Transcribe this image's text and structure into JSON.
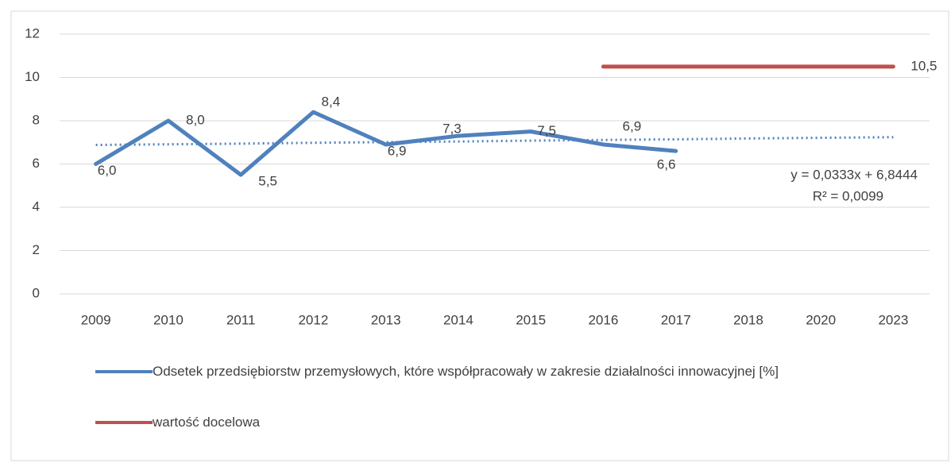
{
  "chart_data": {
    "type": "line",
    "categories": [
      "2009",
      "2010",
      "2011",
      "2012",
      "2013",
      "2014",
      "2015",
      "2016",
      "2017",
      "2018",
      "2020",
      "2023"
    ],
    "series": [
      {
        "name": "Odsetek przedsiębiorstw przemysłowych, które współpracowały w zakresie działalności innowacyjnej [%]",
        "color": "#4f81bd",
        "values": [
          6.0,
          8.0,
          5.5,
          8.4,
          6.9,
          7.3,
          7.5,
          6.9,
          6.6,
          null,
          null,
          null
        ],
        "value_labels": [
          "6,0",
          "8,0",
          "5,5",
          "8,4",
          "6,9",
          "7,3",
          "7,5",
          "6,9",
          "6,6",
          null,
          null,
          null
        ]
      },
      {
        "name": "wartość docelowa",
        "color": "#c0504d",
        "values": [
          null,
          null,
          null,
          null,
          null,
          null,
          null,
          10.5,
          10.5,
          10.5,
          10.5,
          10.5
        ],
        "value_labels": [
          null,
          null,
          null,
          null,
          null,
          null,
          null,
          null,
          null,
          null,
          null,
          "10,5"
        ]
      }
    ],
    "trendline": {
      "color": "#4f81bd",
      "values": [
        6.88,
        6.91,
        6.94,
        6.98,
        7.01,
        7.04,
        7.08,
        7.11,
        7.14,
        7.18,
        7.21,
        7.24
      ],
      "equation": "y = 0,0333x + 6,8444",
      "r2": "R² = 0,0099"
    },
    "ylim": [
      0,
      12
    ],
    "yticks": [
      0,
      2,
      4,
      6,
      8,
      10,
      12
    ],
    "grid": true
  }
}
